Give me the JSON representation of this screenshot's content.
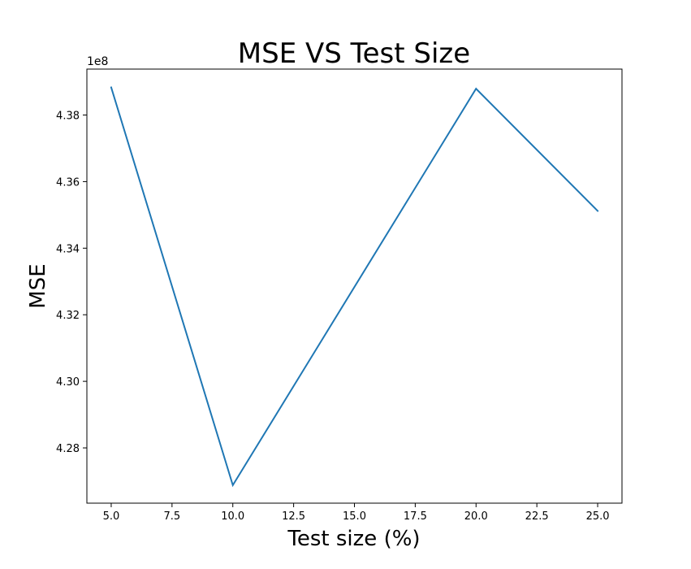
{
  "chart_data": {
    "type": "line",
    "title": "MSE VS Test Size",
    "xlabel": "Test size (%)",
    "ylabel": "MSE",
    "offset_label": "1e8",
    "x_ticks": [
      5.0,
      7.5,
      10.0,
      12.5,
      15.0,
      17.5,
      20.0,
      22.5,
      25.0
    ],
    "x_tick_labels": [
      "5.0",
      "7.5",
      "10.0",
      "12.5",
      "15.0",
      "17.5",
      "20.0",
      "22.5",
      "25.0"
    ],
    "y_ticks": [
      4.28,
      4.3,
      4.32,
      4.34,
      4.36,
      4.38
    ],
    "y_tick_labels": [
      "4.28",
      "4.30",
      "4.32",
      "4.34",
      "4.36",
      "4.38"
    ],
    "xlim": [
      4.0,
      26.0
    ],
    "ylim": [
      4.2634,
      4.3938
    ],
    "grid": false,
    "legend": "none",
    "series": [
      {
        "color": "#1f77b4",
        "x": [
          5,
          10,
          20,
          25
        ],
        "y": [
          4.3883,
          4.2688,
          4.3879,
          4.3512
        ]
      }
    ]
  }
}
